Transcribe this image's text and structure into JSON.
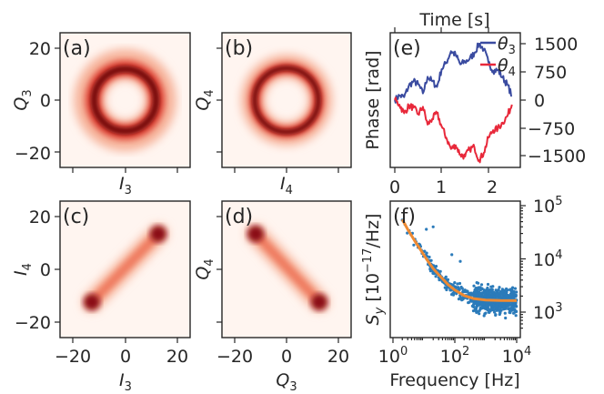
{
  "chart_data": [
    {
      "type": "heatmap",
      "panel": "(a)",
      "xlabel": "I_3",
      "ylabel": "Q_3",
      "xlim": [
        -25,
        25
      ],
      "ylim": [
        -25,
        25
      ],
      "yticks": [
        "20",
        "0",
        "−20"
      ],
      "colormap": "Reds",
      "shape": "ring",
      "ring_radius": 11,
      "ring_width": 3.2
    },
    {
      "type": "heatmap",
      "panel": "(b)",
      "xlabel": "I_4",
      "ylabel": "Q_4",
      "xlim": [
        -25,
        25
      ],
      "ylim": [
        -25,
        25
      ],
      "colormap": "Reds",
      "shape": "ring",
      "ring_radius": 11,
      "ring_width": 2.6
    },
    {
      "type": "heatmap",
      "panel": "(c)",
      "xlabel": "I_3",
      "ylabel": "I_4",
      "xlim": [
        -25,
        25
      ],
      "ylim": [
        -25,
        25
      ],
      "xticks": [
        "−20",
        "0",
        "20"
      ],
      "yticks": [
        "20",
        "0",
        "−20"
      ],
      "colormap": "Reds",
      "shape": "correlated line",
      "endpoints": [
        [
          -12.5,
          -12.5
        ],
        [
          12.5,
          12.5
        ]
      ]
    },
    {
      "type": "heatmap",
      "panel": "(d)",
      "xlabel": "Q_3",
      "ylabel": "Q_4",
      "xlim": [
        -25,
        25
      ],
      "ylim": [
        -25,
        25
      ],
      "xticks": [
        "−20",
        "0",
        "20"
      ],
      "colormap": "Reds",
      "shape": "anti-correlated line",
      "endpoints": [
        [
          -12.5,
          12.5
        ],
        [
          12.5,
          -12.5
        ]
      ]
    },
    {
      "type": "line",
      "panel": "(e)",
      "title": "Time [s]",
      "ylabel": "Phase [rad]",
      "xlim": [
        -0.1,
        2.6
      ],
      "ylim": [
        -1900,
        1800
      ],
      "xticks": [
        "0",
        "1",
        "2"
      ],
      "yticks": [
        "1500",
        "750",
        "0",
        "−750",
        "−1500"
      ],
      "legend_position": "top-right",
      "series": [
        {
          "name": "θ_3",
          "color": "#3a4ba0",
          "x": [
            0,
            0.1,
            0.2,
            0.3,
            0.4,
            0.5,
            0.6,
            0.7,
            0.8,
            0.9,
            1.0,
            1.1,
            1.2,
            1.3,
            1.4,
            1.5,
            1.6,
            1.7,
            1.8,
            1.9,
            2.0,
            2.1,
            2.2,
            2.3,
            2.4,
            2.5
          ],
          "values": [
            0,
            120,
            80,
            380,
            500,
            420,
            180,
            620,
            500,
            350,
            820,
            1000,
            1300,
            1200,
            950,
            1020,
            1100,
            1250,
            1500,
            1350,
            1000,
            780,
            800,
            600,
            420,
            120
          ]
        },
        {
          "name": "θ_4",
          "color": "#e8283a",
          "x": [
            0,
            0.1,
            0.2,
            0.3,
            0.4,
            0.5,
            0.6,
            0.7,
            0.8,
            0.9,
            1.0,
            1.1,
            1.2,
            1.3,
            1.4,
            1.5,
            1.6,
            1.7,
            1.8,
            1.9,
            2.0,
            2.1,
            2.2,
            2.3,
            2.4,
            2.5
          ],
          "values": [
            0,
            -120,
            -350,
            -150,
            -200,
            -380,
            -180,
            -650,
            -500,
            -350,
            -700,
            -1000,
            -1300,
            -1200,
            -1450,
            -1500,
            -1300,
            -1250,
            -1600,
            -1400,
            -1000,
            -800,
            -760,
            -600,
            -430,
            -120
          ]
        }
      ]
    },
    {
      "type": "scatter",
      "panel": "(f)",
      "xlabel": "Frequency [Hz]",
      "ylabel": "S_y [10^−17/Hz]",
      "xscale": "log",
      "yscale": "log",
      "xlim": [
        1,
        10000
      ],
      "ylim": [
        450,
        120000
      ],
      "xticks": [
        "10^0",
        "10^2",
        "10^4"
      ],
      "yticks": [
        "10^5",
        "10^4",
        "10^3"
      ],
      "scatter_color": "#2b7bba",
      "fit_color": "#ef8a32",
      "fit": {
        "x": [
          2,
          3,
          5,
          8,
          12,
          20,
          35,
          60,
          100,
          200,
          400,
          1000,
          3000,
          10000
        ],
        "values": [
          55000,
          36000,
          22000,
          14500,
          10000,
          6600,
          4600,
          3300,
          2600,
          2050,
          1800,
          1680,
          1650,
          1640
        ]
      }
    }
  ],
  "labels": {
    "a": "(a)",
    "b": "(b)",
    "c": "(c)",
    "d": "(d)",
    "e": "(e)",
    "f": "(f)"
  },
  "ticks": {
    "y20": "20",
    "y0": "0",
    "ym20": "−20",
    "xm20": "−20",
    "x0": "0",
    "x20": "20"
  },
  "axis_labels": {
    "I": "I",
    "Q": "Q",
    "sub3": "3",
    "sub4": "4",
    "time": "Time [s]",
    "phase": "Phase [rad]",
    "frequency": "Frequency [Hz]",
    "sy_S": "S",
    "sy_sub": "y",
    "sy_rest": " [10",
    "sy_exp": "−17",
    "sy_end": "/Hz]"
  },
  "e_ticks": {
    "t0": "0",
    "t1": "1",
    "t2": "2",
    "p1500": "1500",
    "p750": "750",
    "p0": "0",
    "pm750": "−750",
    "pm1500": "−1500"
  },
  "legend": {
    "theta": "θ",
    "sub3": "3",
    "sub4": "4"
  },
  "f_ticks": {
    "base": "10",
    "x_e0": "0",
    "x_e2": "2",
    "x_e4": "4",
    "y_e5": "5",
    "y_e4": "4",
    "y_e3": "3"
  }
}
